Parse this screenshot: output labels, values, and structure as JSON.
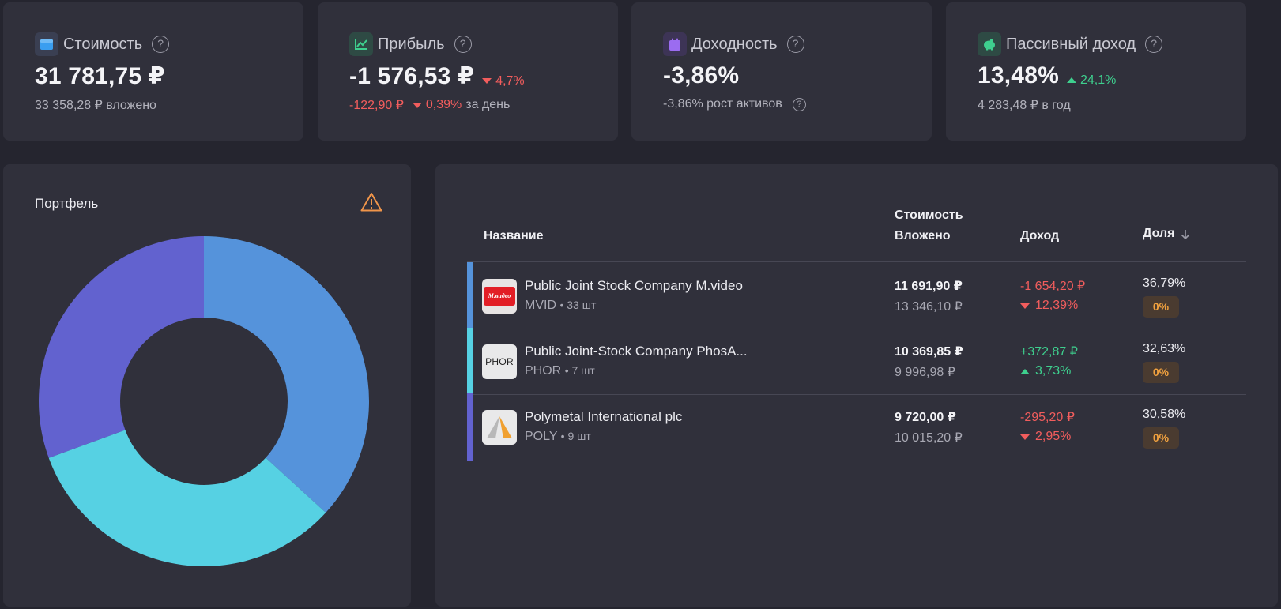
{
  "stats": [
    {
      "title": "Стоимость",
      "icon": "wallet-icon",
      "icon_color": "#3a9ef0",
      "value": "31 781,75 ₽",
      "sub": "33 358,28 ₽ вложено"
    },
    {
      "title": "Прибыль",
      "icon": "chart-line-icon",
      "icon_color": "#3ecf8e",
      "value": "-1 576,53 ₽",
      "change": "4,7%",
      "sub_amount": "-122,90 ₽",
      "sub_percent": "0,39%",
      "sub_suffix": "за день"
    },
    {
      "title": "Доходность",
      "icon": "calendar-icon",
      "icon_color": "#9b6cf0",
      "value": "-3,86%",
      "sub": "-3,86% рост активов"
    },
    {
      "title": "Пассивный доход",
      "icon": "piggy-bank-icon",
      "icon_color": "#3ecf8e",
      "value": "13,48%",
      "change": "24,1%",
      "sub": "4 283,48 ₽ в год"
    }
  ],
  "help_glyph": "?",
  "portfolio": {
    "title": "Портфель",
    "colors": [
      "#5593db",
      "#56d1e3",
      "#6262cf"
    ]
  },
  "chart_data": {
    "type": "pie",
    "categories": [
      "MVID",
      "PHOR",
      "POLY"
    ],
    "values": [
      36.79,
      32.63,
      30.58
    ],
    "colors": [
      "#5593db",
      "#56d1e3",
      "#6262cf"
    ],
    "title": "Портфель"
  },
  "table": {
    "headers": {
      "name": "Название",
      "cost": "Стоимость",
      "invested": "Вложено",
      "income": "Доход",
      "share": "Доля"
    },
    "rows": [
      {
        "name": "Public Joint Stock Company M.video",
        "ticker": "MVID",
        "count": "• 33 шт",
        "cost": "11 691,90 ₽",
        "invested": "13 346,10 ₽",
        "income": "-1 654,20 ₽",
        "income_percent": "12,39%",
        "direction": "down",
        "share": "36,79%",
        "badge": "0%",
        "bar_color": "#5593db",
        "logo_text": "М.видео"
      },
      {
        "name": "Public Joint-Stock Company PhosA...",
        "ticker": "PHOR",
        "count": "• 7 шт",
        "cost": "10 369,85 ₽",
        "invested": "9 996,98 ₽",
        "income": "+372,87 ₽",
        "income_percent": "3,73%",
        "direction": "up",
        "share": "32,63%",
        "badge": "0%",
        "bar_color": "#56d1e3",
        "logo_text": "PHOR"
      },
      {
        "name": "Polymetal International plc",
        "ticker": "POLY",
        "count": "• 9 шт",
        "cost": "9 720,00 ₽",
        "invested": "10 015,20 ₽",
        "income": "-295,20 ₽",
        "income_percent": "2,95%",
        "direction": "down",
        "share": "30,58%",
        "badge": "0%",
        "bar_color": "#6262cf",
        "logo_text": ""
      }
    ]
  }
}
